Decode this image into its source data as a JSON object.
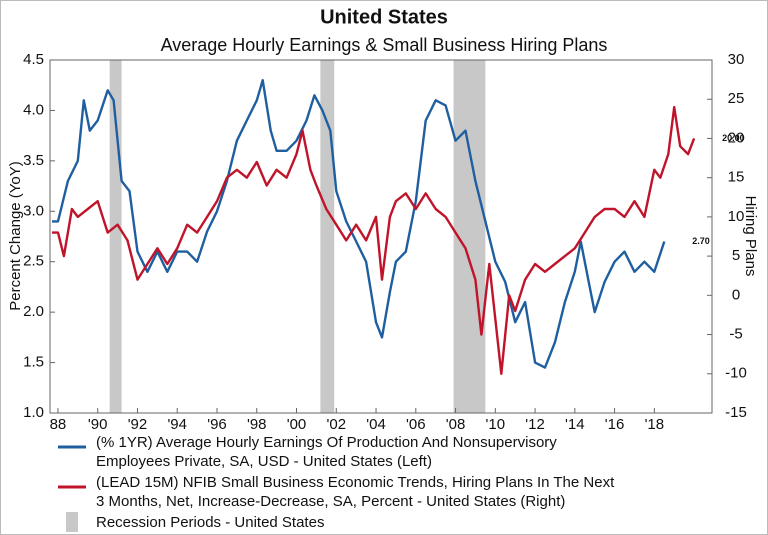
{
  "chart_data": {
    "type": "line",
    "title": "United States",
    "subtitle": "Average Hourly Earnings & Small Business Hiring Plans",
    "ylabel": "Percent Change (YoY)",
    "y2label": "Hiring Plans",
    "xlim": [
      1987.6,
      2020.9
    ],
    "xticks": [
      {
        "value": 1988,
        "label": "88"
      },
      {
        "value": 1990,
        "label": "'90"
      },
      {
        "value": 1992,
        "label": "'92"
      },
      {
        "value": 1994,
        "label": "'94"
      },
      {
        "value": 1996,
        "label": "'96"
      },
      {
        "value": 1998,
        "label": "'98"
      },
      {
        "value": 2000,
        "label": "'00"
      },
      {
        "value": 2002,
        "label": "'02"
      },
      {
        "value": 2004,
        "label": "'04"
      },
      {
        "value": 2006,
        "label": "'06"
      },
      {
        "value": 2008,
        "label": "'08"
      },
      {
        "value": 2010,
        "label": "'10"
      },
      {
        "value": 2012,
        "label": "'12"
      },
      {
        "value": 2014,
        "label": "'14"
      },
      {
        "value": 2016,
        "label": "'16"
      },
      {
        "value": 2018,
        "label": "'18"
      }
    ],
    "ylim": [
      1.0,
      4.5
    ],
    "yticks": [
      {
        "value": 1.0,
        "label": "1.0"
      },
      {
        "value": 1.5,
        "label": "1.5"
      },
      {
        "value": 2.0,
        "label": "2.0"
      },
      {
        "value": 2.5,
        "label": "2.5"
      },
      {
        "value": 3.0,
        "label": "3.0"
      },
      {
        "value": 3.5,
        "label": "3.5"
      },
      {
        "value": 4.0,
        "label": "4.0"
      },
      {
        "value": 4.5,
        "label": "4.5"
      }
    ],
    "y2lim": [
      -15,
      30
    ],
    "y2ticks": [
      -15,
      -10,
      -5,
      0,
      5,
      10,
      15,
      20,
      25,
      30
    ],
    "recessions": {
      "label": "Recession Periods - United States",
      "color": "#c8c8c8",
      "periods": [
        [
          1990.6,
          1991.2
        ],
        [
          2001.2,
          2001.9
        ],
        [
          2007.9,
          2009.5
        ]
      ]
    },
    "series": [
      {
        "name": [
          "(% 1YR) Average Hourly Earnings Of Production And Nonsupervisory",
          "Employees Private, SA, USD - United States      (Left)"
        ],
        "color": "#1f5fa0",
        "axis": "y",
        "end_label": "2.70",
        "x": [
          1987.7,
          1988,
          1988.5,
          1989,
          1989.3,
          1989.6,
          1990,
          1990.5,
          1990.8,
          1991.2,
          1991.6,
          1992,
          1992.5,
          1993,
          1993.5,
          1994,
          1994.5,
          1995,
          1995.5,
          1996,
          1996.5,
          1997,
          1997.5,
          1998,
          1998.3,
          1998.7,
          1999,
          1999.5,
          2000,
          2000.5,
          2000.9,
          2001.3,
          2001.7,
          2002,
          2002.5,
          2003,
          2003.5,
          2004,
          2004.3,
          2004.7,
          2005,
          2005.5,
          2006,
          2006.5,
          2007,
          2007.5,
          2008,
          2008.5,
          2009,
          2009.5,
          2010,
          2010.5,
          2011,
          2011.5,
          2012,
          2012.5,
          2013,
          2013.5,
          2014,
          2014.3,
          2014.7,
          2015,
          2015.5,
          2016,
          2016.5,
          2017,
          2017.5,
          2018,
          2018.5
        ],
        "values": [
          2.9,
          2.9,
          3.3,
          3.5,
          4.1,
          3.8,
          3.9,
          4.2,
          4.1,
          3.3,
          3.2,
          2.6,
          2.4,
          2.6,
          2.4,
          2.6,
          2.6,
          2.5,
          2.8,
          3.0,
          3.3,
          3.7,
          3.9,
          4.1,
          4.3,
          3.8,
          3.6,
          3.6,
          3.7,
          3.9,
          4.15,
          4.0,
          3.8,
          3.2,
          2.9,
          2.7,
          2.5,
          1.9,
          1.75,
          2.2,
          2.5,
          2.6,
          3.1,
          3.9,
          4.1,
          4.05,
          3.7,
          3.8,
          3.3,
          2.9,
          2.5,
          2.3,
          1.9,
          2.1,
          1.5,
          1.45,
          1.7,
          2.1,
          2.4,
          2.7,
          2.3,
          2.0,
          2.3,
          2.5,
          2.6,
          2.4,
          2.5,
          2.4,
          2.7
        ]
      },
      {
        "name": [
          "(LEAD 15M) NFIB Small Business Economic Trends, Hiring Plans In The Next",
          "3 Months, Net, Increase-Decrease, SA, Percent - United States      (Right)"
        ],
        "color": "#c0142a",
        "axis": "y2",
        "end_label": "20.00",
        "x": [
          1987.7,
          1988,
          1988.3,
          1988.7,
          1989,
          1989.5,
          1990,
          1990.5,
          1991,
          1991.5,
          1992,
          1992.5,
          1993,
          1993.5,
          1994,
          1994.5,
          1995,
          1995.5,
          1996,
          1996.5,
          1997,
          1997.5,
          1998,
          1998.5,
          1999,
          1999.5,
          2000,
          2000.3,
          2000.7,
          2001,
          2001.5,
          2002,
          2002.5,
          2003,
          2003.5,
          2004,
          2004.3,
          2004.7,
          2005,
          2005.5,
          2006,
          2006.5,
          2007,
          2007.5,
          2008,
          2008.5,
          2009,
          2009.3,
          2009.7,
          2010,
          2010.3,
          2010.7,
          2011,
          2011.5,
          2012,
          2012.5,
          2013,
          2013.5,
          2014,
          2014.5,
          2015,
          2015.5,
          2016,
          2016.5,
          2017,
          2017.5,
          2018,
          2018.3,
          2018.7,
          2019,
          2019.3,
          2019.7,
          2020
        ],
        "values": [
          8,
          8,
          5,
          11,
          10,
          11,
          12,
          8,
          9,
          7,
          2,
          4,
          6,
          4,
          6,
          9,
          8,
          10,
          12,
          15,
          16,
          15,
          17,
          14,
          16,
          15,
          18,
          21,
          16,
          14,
          11,
          9,
          7,
          9,
          7,
          10,
          2,
          10,
          12,
          13,
          11,
          13,
          11,
          10,
          8,
          6,
          2,
          -5,
          4,
          -3,
          -10,
          0,
          -2,
          2,
          4,
          3,
          4,
          5,
          6,
          8,
          10,
          11,
          11,
          10,
          12,
          10,
          16,
          15,
          18,
          24,
          19,
          18,
          20
        ]
      }
    ]
  }
}
